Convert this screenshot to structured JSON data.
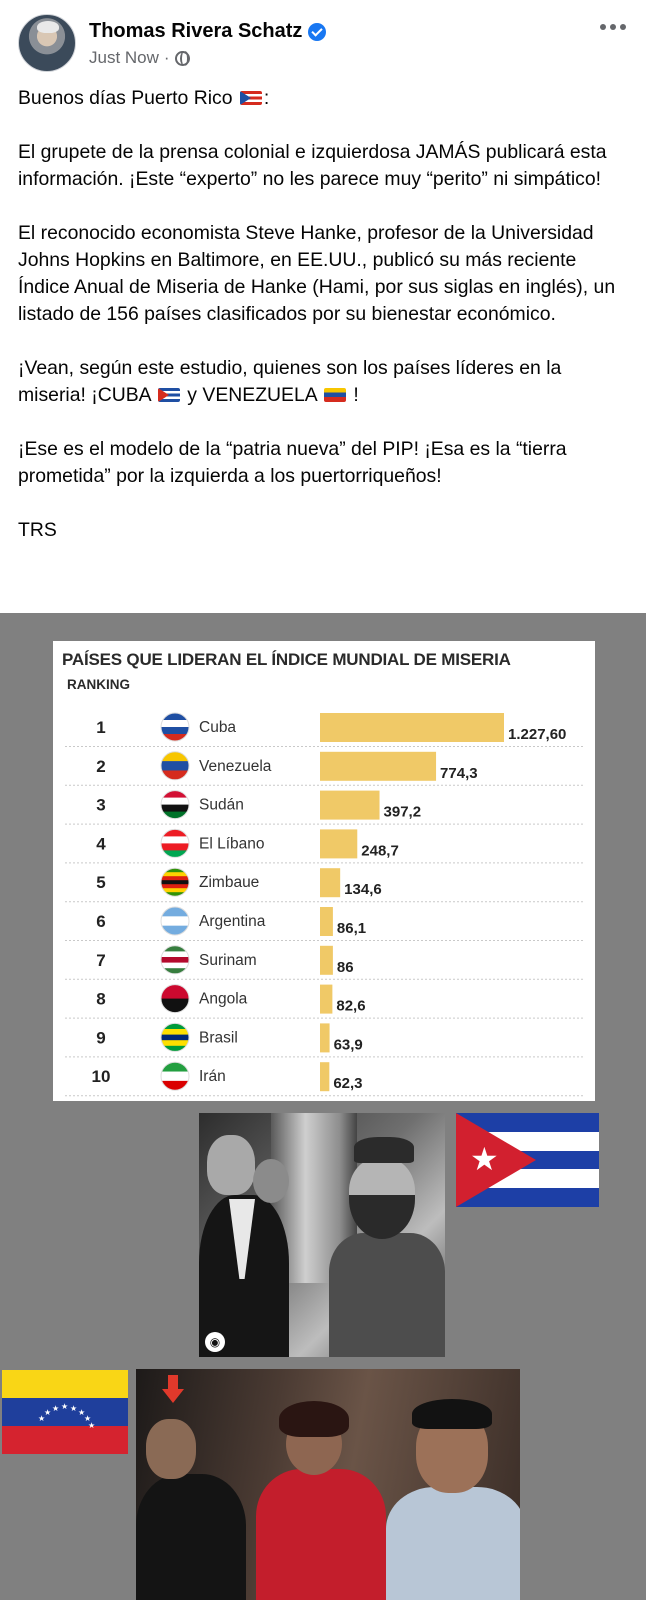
{
  "post": {
    "author": "Thomas Rivera Schatz",
    "timestamp": "Just Now",
    "separator": "·",
    "paragraphs": [
      {
        "text": "Buenos días Puerto Rico ",
        "flag": "pr",
        "after": ":"
      },
      {
        "text": "El grupete de la prensa colonial e izquierdosa JAMÁS publicará esta información. ¡Este “experto” no les parece muy “perito” ni simpático!"
      },
      {
        "text": "El reconocido economista Steve Hanke, profesor de la Universidad Johns Hopkins en Baltimore, en EE.UU., publicó su más reciente Índice Anual de Miseria de Hanke (Hami, por sus siglas en inglés), un listado de 156 países clasificados por su bienestar económico."
      },
      {
        "text_a": "¡Vean, según este estudio, quienes son los países líderes en la miseria! ¡CUBA ",
        "text_b": " y VENEZUELA ",
        "text_c": " !"
      },
      {
        "text": "¡Ese es el modelo de la “patria nueva” del PIP! ¡Esa es la “tierra prometida” por la izquierda a los puertorriqueños!"
      },
      {
        "text": "TRS"
      }
    ]
  },
  "icons": {
    "verified": "verified-badge-icon",
    "audience": "globe-icon",
    "menu": "more-options-icon"
  },
  "colors": {
    "bar": "#f0c967",
    "media_bg": "#808080",
    "verified": "#1877f2"
  },
  "chart_data": {
    "type": "bar",
    "orientation": "horizontal",
    "title": "PAÍSES QUE LIDERAN EL ÍNDICE MUNDIAL DE MISERIA",
    "rank_header": "RANKING",
    "ranks": [
      "1",
      "2",
      "3",
      "4",
      "5",
      "6",
      "7",
      "8",
      "9",
      "10"
    ],
    "categories": [
      "Cuba",
      "Venezuela",
      "Sudán",
      "El Líbano",
      "Zimbaue",
      "Argentina",
      "Surinam",
      "Angola",
      "Brasil",
      "Irán"
    ],
    "values": [
      1227.6,
      774.3,
      397.2,
      248.7,
      134.6,
      86.1,
      86,
      82.6,
      63.9,
      62.3
    ],
    "value_labels": [
      "1.227,60",
      "774,3",
      "397,2",
      "248,7",
      "134,6",
      "86,1",
      "86",
      "82,6",
      "63,9",
      "62,3"
    ],
    "flags": [
      "cuba",
      "venezuela",
      "sudan",
      "lebanon",
      "zimbabwe",
      "argentina",
      "suriname",
      "angola",
      "brazil",
      "iran"
    ]
  }
}
